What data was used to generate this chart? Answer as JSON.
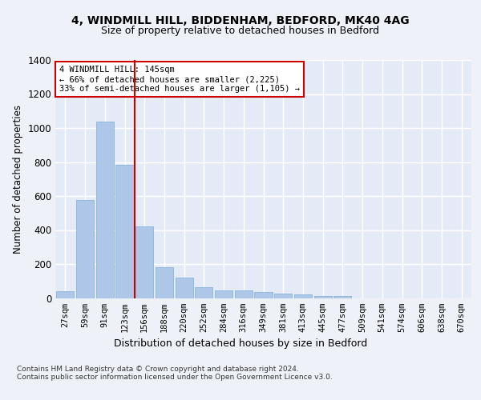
{
  "title1": "4, WINDMILL HILL, BIDDENHAM, BEDFORD, MK40 4AG",
  "title2": "Size of property relative to detached houses in Bedford",
  "xlabel": "Distribution of detached houses by size in Bedford",
  "ylabel": "Number of detached properties",
  "categories": [
    "27sqm",
    "59sqm",
    "91sqm",
    "123sqm",
    "156sqm",
    "188sqm",
    "220sqm",
    "252sqm",
    "284sqm",
    "316sqm",
    "349sqm",
    "381sqm",
    "413sqm",
    "445sqm",
    "477sqm",
    "509sqm",
    "541sqm",
    "574sqm",
    "606sqm",
    "638sqm",
    "670sqm"
  ],
  "values": [
    40,
    575,
    1040,
    785,
    420,
    180,
    120,
    65,
    45,
    45,
    35,
    25,
    20,
    10,
    10,
    0,
    0,
    0,
    0,
    0,
    0
  ],
  "bar_color": "#aec6e8",
  "bar_edge_color": "#7bafd4",
  "vline_color": "#cc0000",
  "vline_x": 3.5,
  "annotation_text": "4 WINDMILL HILL: 145sqm\n← 66% of detached houses are smaller (2,225)\n33% of semi-detached houses are larger (1,105) →",
  "annotation_box_color": "#ffffff",
  "annotation_box_edge": "#cc0000",
  "ylim": [
    0,
    1400
  ],
  "yticks": [
    0,
    200,
    400,
    600,
    800,
    1000,
    1200,
    1400
  ],
  "background_color": "#eef2f8",
  "plot_background": "#e4eaf6",
  "grid_color": "#ffffff",
  "footer1": "Contains HM Land Registry data © Crown copyright and database right 2024.",
  "footer2": "Contains public sector information licensed under the Open Government Licence v3.0."
}
